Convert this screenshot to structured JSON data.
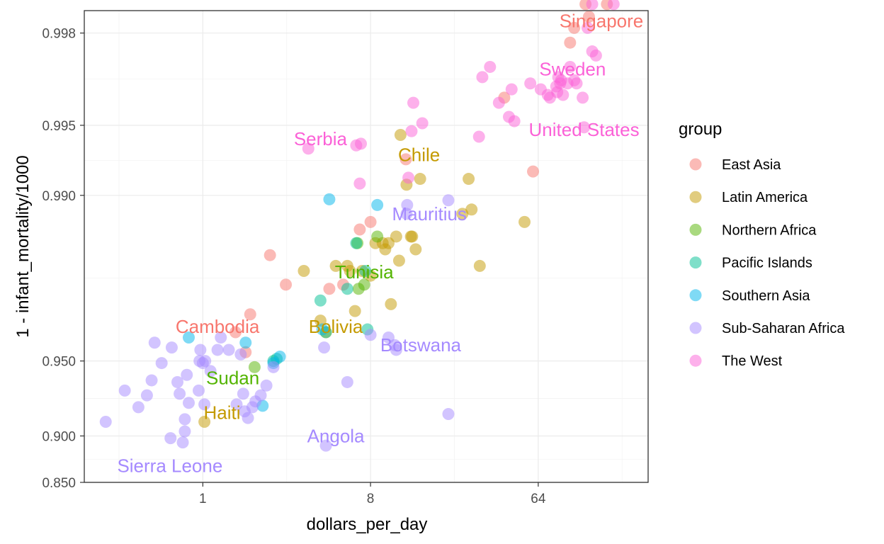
{
  "chart_data": {
    "type": "scatter",
    "title": "",
    "xlabel": "dollars_per_day",
    "ylabel": "1 - infant_mortality/1000",
    "x_scale": "log2",
    "y_scale": "logit",
    "x_ticks": [
      {
        "value": 1,
        "label": "1"
      },
      {
        "value": 8,
        "label": "8"
      },
      {
        "value": 64,
        "label": "64"
      }
    ],
    "y_ticks": [
      {
        "value": 0.85,
        "label": "0.850"
      },
      {
        "value": 0.9,
        "label": "0.900"
      },
      {
        "value": 0.95,
        "label": "0.950"
      },
      {
        "value": 0.99,
        "label": "0.990"
      },
      {
        "value": 0.995,
        "label": "0.995"
      },
      {
        "value": 0.998,
        "label": "0.998"
      }
    ],
    "xlim": [
      0.23,
      250
    ],
    "ylim": [
      0.85,
      0.9984
    ],
    "grid": true,
    "legend": {
      "title": "group",
      "position": "right",
      "entries": [
        {
          "name": "East Asia",
          "color": "#F8766D"
        },
        {
          "name": "Latin America",
          "color": "#C49A00"
        },
        {
          "name": "Northern Africa",
          "color": "#53B400"
        },
        {
          "name": "Pacific Islands",
          "color": "#00C094"
        },
        {
          "name": "Southern Asia",
          "color": "#00B6EB"
        },
        {
          "name": "Sub-Saharan Africa",
          "color": "#A58AFF"
        },
        {
          "name": "The West",
          "color": "#FB61D7"
        }
      ]
    },
    "series": [
      {
        "name": "East Asia",
        "points": [
          [
            1.5,
            0.962
          ],
          [
            1.8,
            0.968
          ],
          [
            2.3,
            0.982
          ],
          [
            2.8,
            0.976
          ],
          [
            4.8,
            0.975
          ],
          [
            5.7,
            0.976
          ],
          [
            7,
            0.986
          ],
          [
            8,
            0.987
          ],
          [
            12.4,
            0.993
          ],
          [
            42,
            0.9962
          ],
          [
            60,
            0.9921
          ],
          [
            95,
            0.9978
          ],
          [
            100,
            0.9981
          ],
          [
            115,
            0.9985
          ],
          [
            120,
            0.9983
          ],
          [
            150,
            0.9985
          ],
          [
            1.7,
            0.954
          ]
        ]
      },
      {
        "name": "Latin America",
        "points": [
          [
            3.5,
            0.979
          ],
          [
            4.3,
            0.966
          ],
          [
            5.2,
            0.98
          ],
          [
            6,
            0.98
          ],
          [
            6.2,
            0.979
          ],
          [
            7.2,
            0.979
          ],
          [
            8,
            0.978
          ],
          [
            8.5,
            0.984
          ],
          [
            9.3,
            0.984
          ],
          [
            9.6,
            0.983
          ],
          [
            10,
            0.984
          ],
          [
            10.3,
            0.971
          ],
          [
            11,
            0.985
          ],
          [
            11.4,
            0.981
          ],
          [
            11.6,
            0.9945
          ],
          [
            12.5,
            0.991
          ],
          [
            13.2,
            0.985
          ],
          [
            13.4,
            0.985
          ],
          [
            14,
            0.983
          ],
          [
            14.8,
            0.9915
          ],
          [
            25,
            0.988
          ],
          [
            27,
            0.9915
          ],
          [
            28,
            0.9885
          ],
          [
            31,
            0.98
          ],
          [
            54,
            0.987
          ],
          [
            4.6,
            0.962
          ],
          [
            6.6,
            0.969
          ],
          [
            1.02,
            0.912
          ]
        ]
      },
      {
        "name": "Northern Africa",
        "points": [
          [
            1.9,
            0.947
          ],
          [
            6.9,
            0.975
          ],
          [
            7.4,
            0.976
          ],
          [
            8.7,
            0.985
          ],
          [
            6.8,
            0.984
          ]
        ]
      },
      {
        "name": "Pacific Islands",
        "points": [
          [
            4.3,
            0.972
          ],
          [
            6,
            0.975
          ],
          [
            6.7,
            0.984
          ],
          [
            7.5,
            0.979
          ],
          [
            7.7,
            0.963
          ],
          [
            2.4,
            0.95
          ],
          [
            2.5,
            0.951
          ],
          [
            4.6,
            0.962
          ]
        ]
      },
      {
        "name": "Southern Asia",
        "points": [
          [
            0.84,
            0.96
          ],
          [
            1.7,
            0.958
          ],
          [
            2.4,
            0.949
          ],
          [
            2.6,
            0.952
          ],
          [
            4.8,
            0.9896
          ],
          [
            8.7,
            0.989
          ],
          [
            2.1,
            0.924
          ],
          [
            4.4,
            0.963
          ]
        ]
      },
      {
        "name": "Sub-Saharan Africa",
        "points": [
          [
            0.3,
            0.912
          ],
          [
            0.38,
            0.934
          ],
          [
            0.45,
            0.923
          ],
          [
            0.5,
            0.931
          ],
          [
            0.53,
            0.94
          ],
          [
            0.55,
            0.958
          ],
          [
            0.6,
            0.949
          ],
          [
            0.67,
            0.898
          ],
          [
            0.68,
            0.956
          ],
          [
            0.73,
            0.939
          ],
          [
            0.75,
            0.932
          ],
          [
            0.78,
            0.894
          ],
          [
            0.8,
            0.914
          ],
          [
            0.8,
            0.904
          ],
          [
            0.82,
            0.943
          ],
          [
            0.84,
            0.926
          ],
          [
            0.95,
            0.934
          ],
          [
            0.96,
            0.95
          ],
          [
            0.97,
            0.955
          ],
          [
            1,
            0.949
          ],
          [
            1.02,
            0.925
          ],
          [
            1.03,
            0.95
          ],
          [
            1.1,
            0.945
          ],
          [
            1.2,
            0.955
          ],
          [
            1.25,
            0.96
          ],
          [
            1.38,
            0.955
          ],
          [
            1.52,
            0.925
          ],
          [
            1.6,
            0.953
          ],
          [
            1.65,
            0.932
          ],
          [
            1.68,
            0.92
          ],
          [
            1.75,
            0.915
          ],
          [
            1.85,
            0.923
          ],
          [
            1.92,
            0.927
          ],
          [
            2.05,
            0.931
          ],
          [
            2.2,
            0.937
          ],
          [
            2.4,
            0.947
          ],
          [
            4.5,
            0.956
          ],
          [
            4.6,
            0.891
          ],
          [
            6,
            0.939
          ],
          [
            8,
            0.961
          ],
          [
            10,
            0.96
          ],
          [
            10.8,
            0.957
          ],
          [
            11,
            0.955
          ],
          [
            12.6,
            0.989
          ],
          [
            12.5,
            0.988
          ],
          [
            21,
            0.9895
          ],
          [
            21,
            0.918
          ]
        ]
      },
      {
        "name": "The West",
        "points": [
          [
            3.7,
            0.9937
          ],
          [
            6.7,
            0.9939
          ],
          [
            7.1,
            0.994
          ],
          [
            7,
            0.9911
          ],
          [
            12.8,
            0.9916
          ],
          [
            13.3,
            0.9947
          ],
          [
            13.6,
            0.996
          ],
          [
            15.2,
            0.9951
          ],
          [
            30.7,
            0.9944
          ],
          [
            32,
            0.9969
          ],
          [
            35.2,
            0.9972
          ],
          [
            39.3,
            0.996
          ],
          [
            44.5,
            0.9954
          ],
          [
            46,
            0.9965
          ],
          [
            47.6,
            0.9952
          ],
          [
            58,
            0.9967
          ],
          [
            66,
            0.9965
          ],
          [
            72,
            0.9963
          ],
          [
            74,
            0.9962
          ],
          [
            80,
            0.9966
          ],
          [
            81,
            0.9964
          ],
          [
            82,
            0.9969
          ],
          [
            84,
            0.9967
          ],
          [
            85,
            0.9968
          ],
          [
            87,
            0.9963
          ],
          [
            92,
            0.9967
          ],
          [
            95,
            0.9972
          ],
          [
            100,
            0.9968
          ],
          [
            103,
            0.9967
          ],
          [
            111,
            0.9962
          ],
          [
            113,
            0.9949
          ],
          [
            125,
            0.9976
          ],
          [
            131,
            0.9975
          ],
          [
            163,
            0.9985
          ],
          [
            125,
            0.9985
          ],
          [
            118,
            0.9981
          ]
        ]
      }
    ],
    "annotations": [
      {
        "text": "Singapore",
        "x": 140,
        "y": 0.9982,
        "group": "East Asia"
      },
      {
        "text": "Sweden",
        "x": 98,
        "y": 0.9971,
        "group": "The West"
      },
      {
        "text": "United States",
        "x": 113,
        "y": 0.9947,
        "group": "The West"
      },
      {
        "text": "Serbia",
        "x": 4.3,
        "y": 0.9942,
        "group": "The West"
      },
      {
        "text": "Chile",
        "x": 14.6,
        "y": 0.9932,
        "group": "Latin America"
      },
      {
        "text": "Mauritius",
        "x": 16.6,
        "y": 0.9878,
        "group": "Sub-Saharan Africa"
      },
      {
        "text": "Tunisia",
        "x": 7.4,
        "y": 0.9785,
        "group": "Northern Africa"
      },
      {
        "text": "Cambodia",
        "x": 1.2,
        "y": 0.9635,
        "group": "East Asia"
      },
      {
        "text": "Bolivia",
        "x": 5.2,
        "y": 0.9635,
        "group": "Latin America"
      },
      {
        "text": "Botswana",
        "x": 14.9,
        "y": 0.9565,
        "group": "Sub-Saharan Africa"
      },
      {
        "text": "Sudan",
        "x": 1.45,
        "y": 0.9405,
        "group": "Northern Africa"
      },
      {
        "text": "Haiti",
        "x": 1.27,
        "y": 0.918,
        "group": "Latin America"
      },
      {
        "text": "Angola",
        "x": 5.2,
        "y": 0.8985,
        "group": "Sub-Saharan Africa"
      },
      {
        "text": "Sierra Leone",
        "x": 0.665,
        "y": 0.8682,
        "group": "Sub-Saharan Africa"
      }
    ]
  }
}
